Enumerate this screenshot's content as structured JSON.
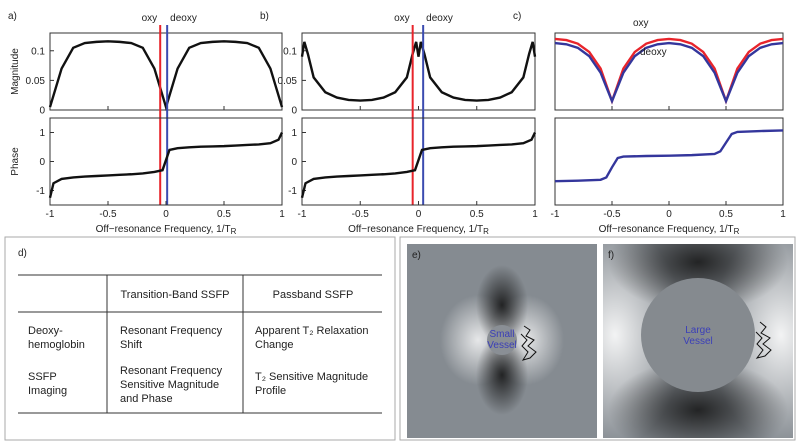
{
  "chart_data": [
    {
      "type": "line",
      "label": "a)",
      "ylabel": "Magnitude",
      "x": [
        -1,
        -0.9,
        -0.8,
        -0.7,
        -0.6,
        -0.5,
        -0.4,
        -0.3,
        -0.2,
        -0.1,
        0,
        0.1,
        0.2,
        0.3,
        0.4,
        0.5,
        0.6,
        0.7,
        0.8,
        0.9,
        1
      ],
      "series": [
        {
          "color": "#111111",
          "values": [
            0.005,
            0.07,
            0.105,
            0.113,
            0.115,
            0.116,
            0.115,
            0.113,
            0.105,
            0.07,
            0.005,
            0.07,
            0.105,
            0.113,
            0.115,
            0.116,
            0.115,
            0.113,
            0.105,
            0.07,
            0.005
          ]
        }
      ],
      "xlim": [
        -1,
        1
      ],
      "ylim": [
        0,
        0.13
      ],
      "xticks": [
        -1,
        -0.5,
        0,
        0.5,
        1
      ],
      "xtick_labels": false,
      "yticks": [
        0,
        0.05,
        0.1
      ],
      "vlines": [
        {
          "name": "oxy",
          "color": "#e8242b",
          "x": -0.05
        },
        {
          "name": "deoxy",
          "color": "#3b4bb0",
          "x": 0.01
        }
      ]
    },
    {
      "type": "line",
      "ylabel": "Phase",
      "xlabel": {
        "text": "Off−resonance Frequency, 1/T",
        "sub": "R"
      },
      "x": [
        -1,
        -0.97,
        -0.9,
        -0.8,
        -0.7,
        -0.6,
        -0.5,
        -0.4,
        -0.3,
        -0.2,
        -0.1,
        -0.03,
        0,
        0.03,
        0.1,
        0.2,
        0.3,
        0.4,
        0.5,
        0.6,
        0.7,
        0.8,
        0.9,
        0.97,
        1
      ],
      "series": [
        {
          "color": "#111111",
          "values": [
            -1.25,
            -0.75,
            -0.6,
            -0.55,
            -0.52,
            -0.5,
            -0.48,
            -0.46,
            -0.44,
            -0.41,
            -0.36,
            -0.3,
            0.05,
            0.4,
            0.46,
            0.49,
            0.51,
            0.52,
            0.53,
            0.55,
            0.57,
            0.59,
            0.63,
            0.75,
            1.0
          ]
        }
      ],
      "xlim": [
        -1,
        1
      ],
      "ylim": [
        -1.5,
        1.5
      ],
      "xticks": [
        -1,
        -0.5,
        0,
        0.5,
        1
      ],
      "xtick_labels": true,
      "yticks": [
        -1,
        0,
        1
      ]
    },
    {
      "type": "line",
      "label": "b)",
      "x": [
        -1,
        -0.98,
        -0.95,
        -0.9,
        -0.8,
        -0.7,
        -0.6,
        -0.5,
        -0.4,
        -0.3,
        -0.2,
        -0.1,
        -0.05,
        -0.02,
        0,
        0.02,
        0.05,
        0.1,
        0.2,
        0.3,
        0.4,
        0.5,
        0.6,
        0.7,
        0.8,
        0.9,
        0.95,
        0.98,
        1
      ],
      "series": [
        {
          "color": "#111111",
          "values": [
            0.09,
            0.115,
            0.095,
            0.055,
            0.03,
            0.021,
            0.017,
            0.016,
            0.017,
            0.021,
            0.03,
            0.055,
            0.095,
            0.115,
            0.09,
            0.115,
            0.095,
            0.055,
            0.03,
            0.021,
            0.017,
            0.016,
            0.017,
            0.021,
            0.03,
            0.055,
            0.095,
            0.115,
            0.09
          ]
        }
      ],
      "xlim": [
        -1,
        1
      ],
      "ylim": [
        0,
        0.13
      ],
      "xticks": [
        -1,
        -0.5,
        0,
        0.5,
        1
      ],
      "xtick_labels": false,
      "yticks": [
        0,
        0.05,
        0.1
      ],
      "vlines": [
        {
          "name": "oxy",
          "color": "#e8242b",
          "x": -0.05
        },
        {
          "name": "deoxy",
          "color": "#3b4bb0",
          "x": 0.04
        }
      ]
    },
    {
      "type": "line",
      "xlabel": {
        "text": "Off−resonance Frequency, 1/T",
        "sub": "R"
      },
      "x": [
        -1,
        -0.97,
        -0.9,
        -0.8,
        -0.7,
        -0.6,
        -0.5,
        -0.4,
        -0.3,
        -0.2,
        -0.1,
        -0.03,
        0,
        0.03,
        0.1,
        0.2,
        0.3,
        0.4,
        0.5,
        0.6,
        0.7,
        0.8,
        0.9,
        0.97,
        1
      ],
      "series": [
        {
          "color": "#111111",
          "values": [
            -1.25,
            -0.75,
            -0.6,
            -0.55,
            -0.52,
            -0.5,
            -0.48,
            -0.46,
            -0.44,
            -0.41,
            -0.36,
            -0.3,
            0.05,
            0.4,
            0.46,
            0.49,
            0.51,
            0.52,
            0.53,
            0.55,
            0.57,
            0.59,
            0.63,
            0.75,
            1.0
          ]
        }
      ],
      "xlim": [
        -1,
        1
      ],
      "ylim": [
        -1.5,
        1.5
      ],
      "xticks": [
        -1,
        -0.5,
        0,
        0.5,
        1
      ],
      "xtick_labels": true,
      "yticks": [
        -1,
        0,
        1
      ]
    },
    {
      "type": "line",
      "label": "c)",
      "x": [
        -1,
        -0.9,
        -0.8,
        -0.7,
        -0.6,
        -0.5,
        -0.4,
        -0.3,
        -0.2,
        -0.1,
        0,
        0.1,
        0.2,
        0.3,
        0.4,
        0.5,
        0.6,
        0.7,
        0.8,
        0.9,
        1
      ],
      "series": [
        {
          "name": "oxy",
          "color": "#e8242b",
          "values": [
            0.12,
            0.118,
            0.112,
            0.098,
            0.07,
            0.015,
            0.07,
            0.098,
            0.112,
            0.118,
            0.12,
            0.118,
            0.112,
            0.098,
            0.07,
            0.015,
            0.07,
            0.098,
            0.112,
            0.118,
            0.12
          ]
        },
        {
          "name": "deoxy",
          "color": "#34369c",
          "values": [
            0.113,
            0.111,
            0.105,
            0.091,
            0.063,
            0.015,
            0.063,
            0.091,
            0.105,
            0.111,
            0.113,
            0.111,
            0.105,
            0.091,
            0.063,
            0.015,
            0.063,
            0.091,
            0.105,
            0.111,
            0.113
          ]
        }
      ],
      "xlim": [
        -1,
        1
      ],
      "ylim": [
        0,
        0.13
      ],
      "xticks": [
        -1,
        -0.5,
        0,
        0.5,
        1
      ],
      "xtick_labels": false
    },
    {
      "type": "line",
      "xlabel": {
        "text": "Off−resonance Frequency, 1/T",
        "sub": "R"
      },
      "x": [
        -1,
        -0.8,
        -0.6,
        -0.55,
        -0.5,
        -0.45,
        -0.4,
        -0.2,
        0,
        0.2,
        0.4,
        0.45,
        0.5,
        0.55,
        0.6,
        0.8,
        1
      ],
      "series": [
        {
          "color": "#34369c",
          "values": [
            -0.68,
            -0.66,
            -0.63,
            -0.55,
            -0.2,
            0.12,
            0.17,
            0.19,
            0.2,
            0.22,
            0.26,
            0.35,
            0.65,
            0.95,
            1.02,
            1.05,
            1.07
          ]
        }
      ],
      "xlim": [
        -1,
        1
      ],
      "ylim": [
        -1.5,
        1.5
      ],
      "xticks": [
        -1,
        -0.5,
        0,
        0.5,
        1
      ],
      "xtick_labels": true
    }
  ],
  "table": {
    "title": "d)",
    "header": [
      "Transition-Band SSFP",
      "Passband SSFP"
    ],
    "rows": [
      {
        "label": "Deoxy-hemoglobin",
        "cells": [
          "Resonant Frequency Shift",
          "Apparent T₂ Relaxation Change"
        ]
      },
      {
        "label": "SSFP Imaging",
        "cells": [
          "Resonant Frequency Sensitive Magnitude and Phase",
          "T₂ Sensitive Magnitude Profile"
        ]
      }
    ]
  },
  "images": [
    {
      "label": "e)",
      "vessel": "Small Vessel"
    },
    {
      "label": "f)",
      "vessel": "Large Vessel"
    }
  ]
}
